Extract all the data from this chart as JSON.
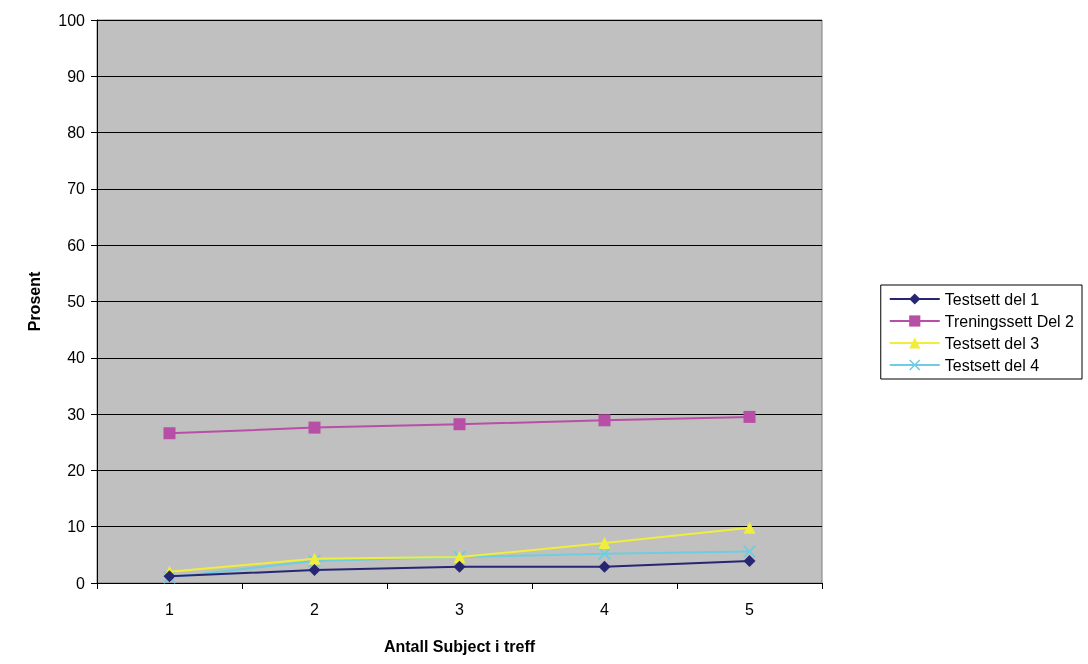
{
  "chart_data": {
    "type": "line",
    "xlabel": "Antall Subject i treff",
    "ylabel": "Prosent",
    "categories": [
      "1",
      "2",
      "3",
      "4",
      "5"
    ],
    "series": [
      {
        "name": "Testsett del 1",
        "color": "#262673",
        "marker": "diamond",
        "values": [
          1.2,
          2.3,
          2.9,
          2.9,
          3.9
        ]
      },
      {
        "name": "Treningssett Del 2",
        "color": "#b84fa6",
        "marker": "square",
        "values": [
          26.6,
          27.6,
          28.2,
          28.9,
          29.5
        ]
      },
      {
        "name": "Testsett del 3",
        "color": "#f0ee3a",
        "marker": "triangle",
        "values": [
          2.0,
          4.3,
          4.6,
          7.1,
          9.8
        ]
      },
      {
        "name": "Testsett del 4",
        "color": "#6ecde0",
        "marker": "cross",
        "values": [
          1.0,
          3.9,
          4.6,
          5.2,
          5.6
        ]
      }
    ],
    "ylim": [
      0,
      100
    ],
    "yticks": [
      0,
      10,
      20,
      30,
      40,
      50,
      60,
      70,
      80,
      90,
      100
    ],
    "grid": "y",
    "legend": "right"
  }
}
